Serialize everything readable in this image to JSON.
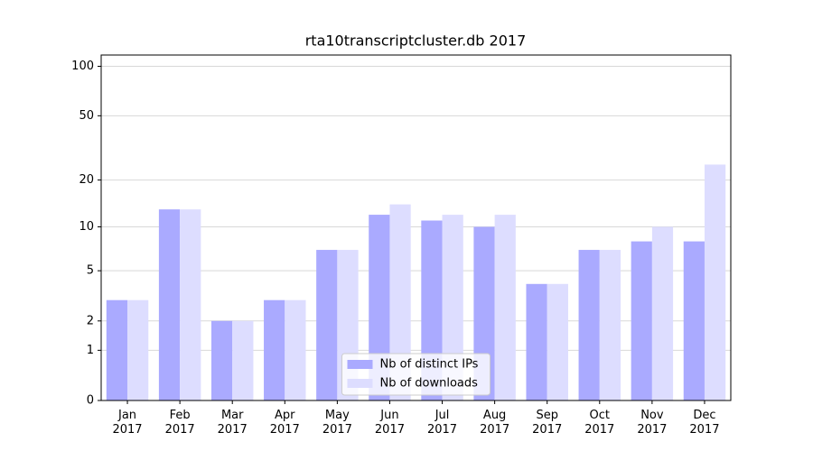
{
  "chart_data": {
    "type": "bar",
    "title": "rta10transcriptcluster.db 2017",
    "categories": [
      "Jan 2017",
      "Feb 2017",
      "Mar 2017",
      "Apr 2017",
      "May 2017",
      "Jun 2017",
      "Jul 2017",
      "Aug 2017",
      "Sep 2017",
      "Oct 2017",
      "Nov 2017",
      "Dec 2017"
    ],
    "series": [
      {
        "name": "Nb of distinct IPs",
        "color": "#aaaaff",
        "values": [
          3,
          13,
          2,
          3,
          7,
          12,
          11,
          10,
          4,
          7,
          8,
          8
        ]
      },
      {
        "name": "Nb of downloads",
        "color": "#ddddff",
        "values": [
          3,
          13,
          2,
          3,
          7,
          14,
          12,
          12,
          4,
          7,
          10,
          25
        ]
      }
    ],
    "yscale": "log1p",
    "ylim": [
      0,
      117
    ],
    "yticks": [
      0,
      1,
      2,
      5,
      10,
      20,
      50,
      100
    ],
    "grid": true,
    "legend": "lower center"
  }
}
